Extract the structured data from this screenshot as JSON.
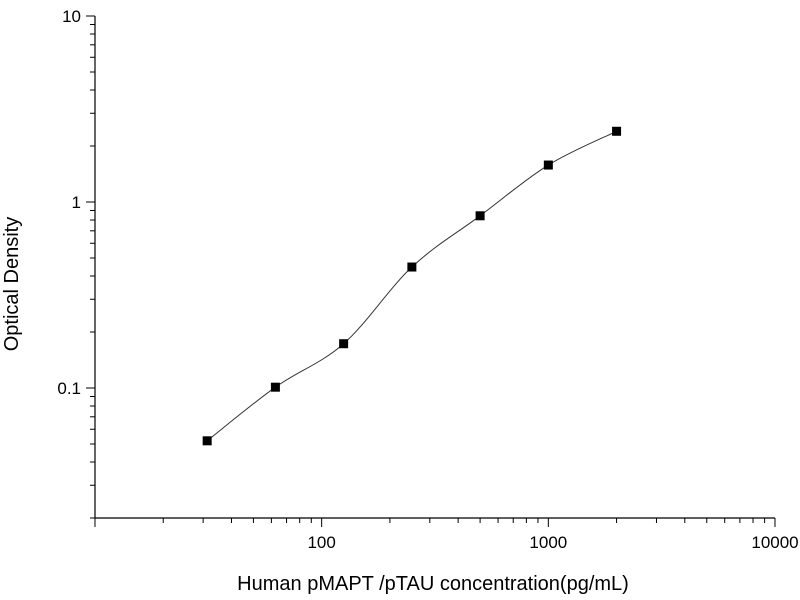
{
  "chart_data": {
    "type": "scatter",
    "title": "",
    "xlabel": "Human pMAPT /pTAU concentration(pg/mL)",
    "ylabel": "Optical Density",
    "x_scale": "log",
    "y_scale": "log",
    "xlim": [
      10,
      10000
    ],
    "ylim": [
      0.02,
      10
    ],
    "x_ticks": [
      {
        "value": 100,
        "label": "100"
      },
      {
        "value": 1000,
        "label": "1000"
      },
      {
        "value": 10000,
        "label": "10000"
      }
    ],
    "y_ticks": [
      {
        "value": 0.1,
        "label": "0.1"
      },
      {
        "value": 1,
        "label": "1"
      },
      {
        "value": 10,
        "label": "10"
      }
    ],
    "grid": false,
    "legend": "none",
    "series": [
      {
        "x": [
          31.25,
          62.5,
          125,
          250,
          500,
          1000,
          2000
        ],
        "y": [
          0.052,
          0.101,
          0.173,
          0.447,
          0.843,
          1.58,
          2.4
        ],
        "marker": "square",
        "color": "#000000",
        "fit_curve": true
      }
    ]
  }
}
